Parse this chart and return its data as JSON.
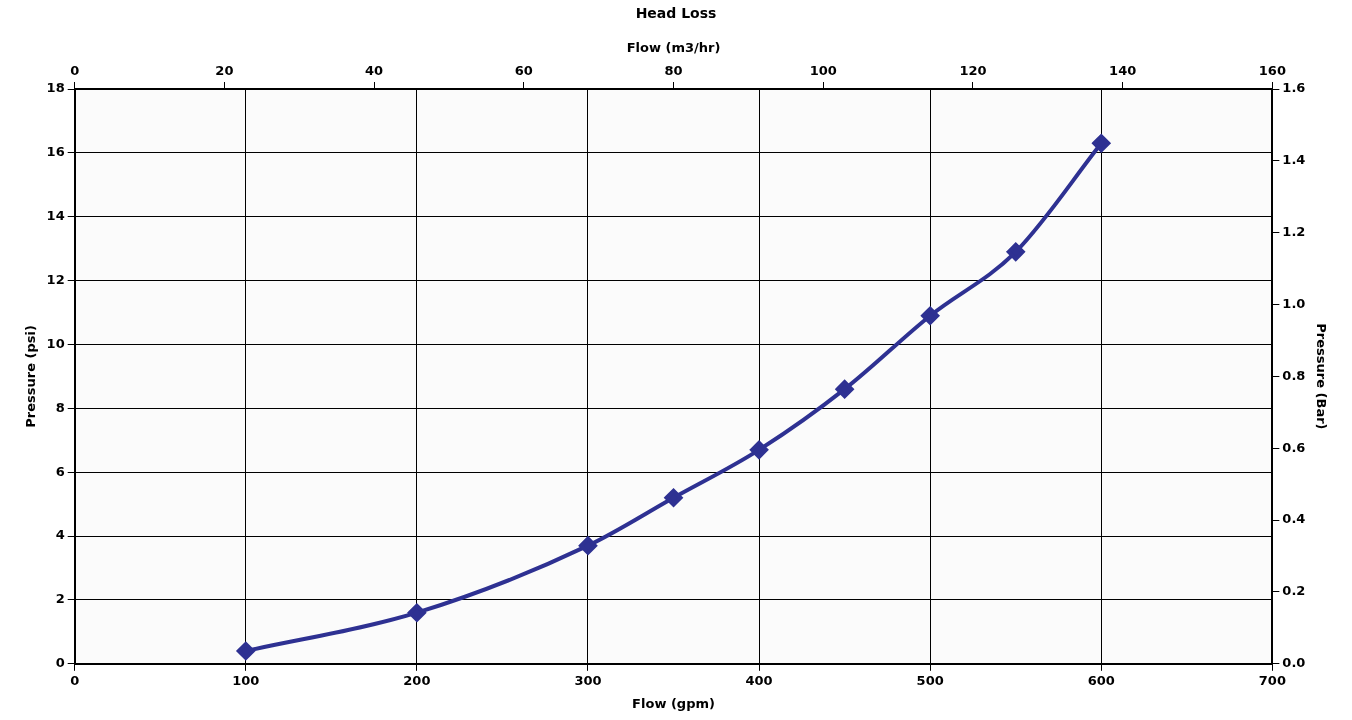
{
  "chart_data": {
    "type": "line",
    "title": "Head Loss",
    "xlabel": "Flow (gpm)",
    "x2label": "Flow (m3/hr)",
    "ylabel": "Pressure (psi)",
    "y2label": "Pressure (Bar)",
    "x": [
      100,
      200,
      300,
      350,
      400,
      450,
      500,
      550,
      600
    ],
    "series": [
      {
        "color": "#2e3192",
        "values": [
          0.4,
          1.6,
          3.7,
          5.2,
          6.7,
          8.6,
          10.9,
          12.9,
          16.3
        ]
      }
    ],
    "xlim": [
      0,
      700
    ],
    "xticks": [
      0,
      100,
      200,
      300,
      400,
      500,
      600,
      700
    ],
    "x2lim": [
      0,
      160
    ],
    "x2ticks": [
      0,
      20,
      40,
      60,
      80,
      100,
      120,
      140,
      160
    ],
    "ylim": [
      0,
      18
    ],
    "yticks": [
      0,
      2,
      4,
      6,
      8,
      10,
      12,
      14,
      16,
      18
    ],
    "y2lim": [
      0,
      1.6
    ],
    "y2ticks": [
      {
        "value": 0,
        "label": "0.0"
      },
      {
        "value": 0.2,
        "label": "0.2"
      },
      {
        "value": 0.4,
        "label": "0.4"
      },
      {
        "value": 0.6,
        "label": "0.6"
      },
      {
        "value": 0.8,
        "label": "0.8"
      },
      {
        "value": 1,
        "label": "1.0"
      },
      {
        "value": 1.2,
        "label": "1.2"
      },
      {
        "value": 1.4,
        "label": "1.4"
      },
      {
        "value": 1.6,
        "label": "1.6"
      }
    ],
    "grid": true,
    "legend": false,
    "marker": "diamond",
    "line_style": "solid"
  }
}
